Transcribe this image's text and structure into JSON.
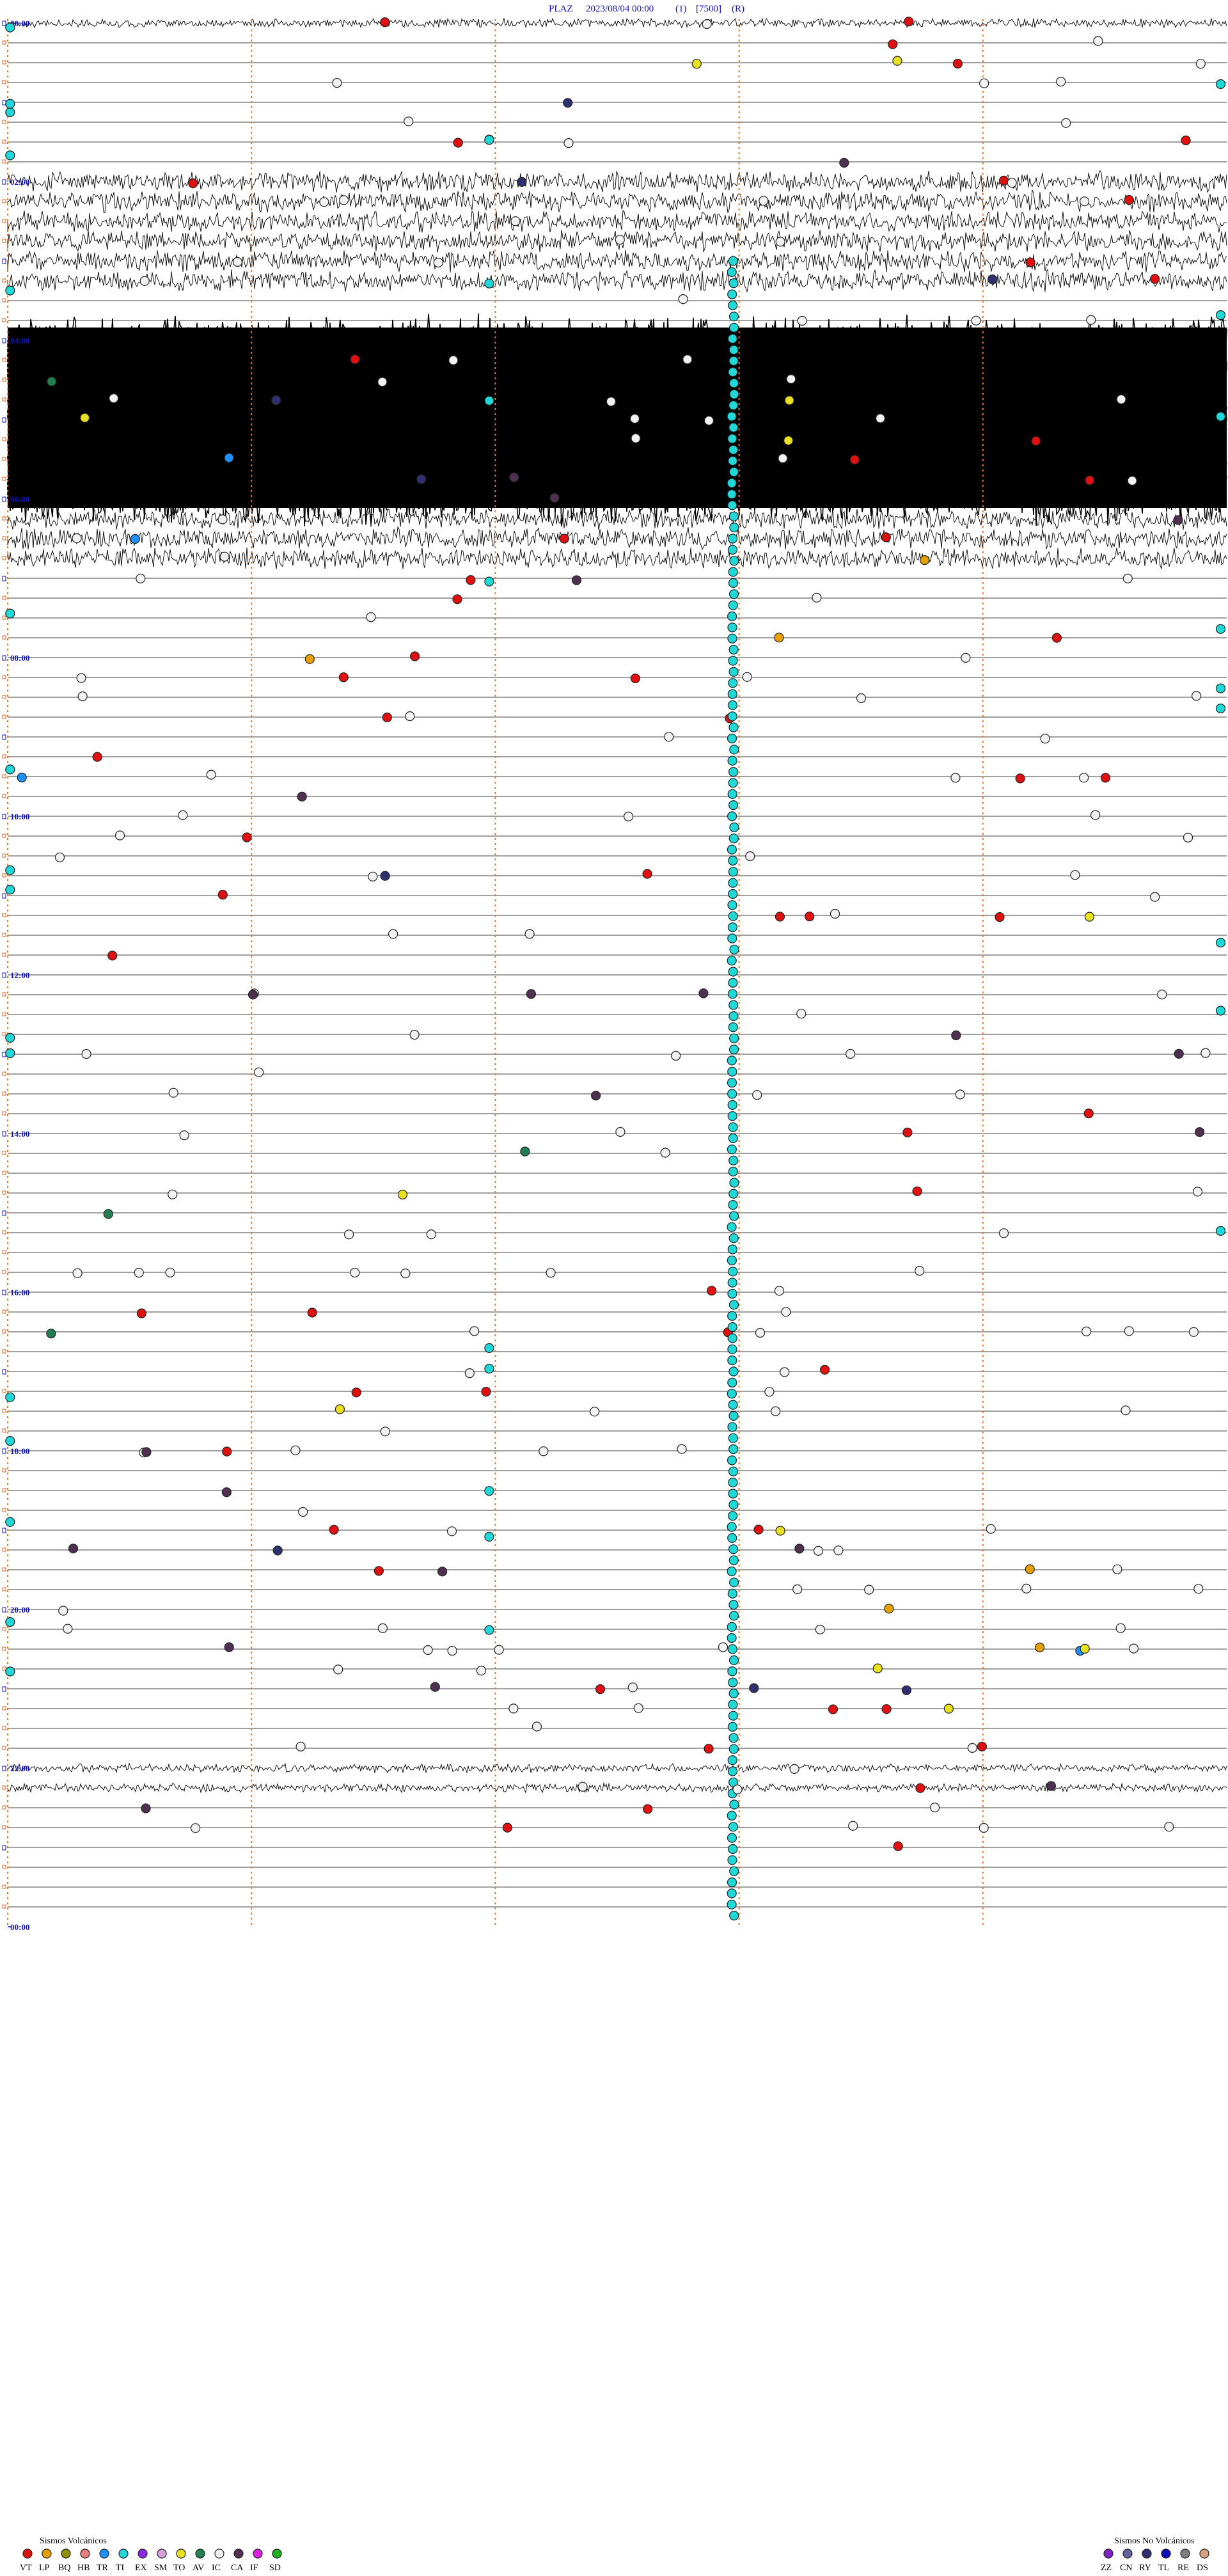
{
  "header": {
    "station": "PLAZ",
    "datetime": "2023/08/04 00:00",
    "field1": "(1)",
    "field2": "[7500]",
    "field3": "(R)"
  },
  "chart_data": {
    "type": "helicorder",
    "station": "PLAZ",
    "date": "2023/08/04",
    "rows_per_hour": 4,
    "minutes_per_row": 15,
    "hour_labels": [
      "00:00",
      "02:00",
      "04:00",
      "06:00",
      "08:00",
      "10:00",
      "12:00",
      "14:00",
      "16:00",
      "18:00",
      "20:00",
      "22:00",
      "00:00"
    ],
    "high_activity_rows": [
      {
        "from_row": 0,
        "to_row": 0,
        "amplitude": "medium"
      },
      {
        "from_row": 8,
        "to_row": 13,
        "amplitude": "high"
      },
      {
        "from_row": 16,
        "to_row": 24,
        "amplitude": "saturated"
      },
      {
        "from_row": 25,
        "to_row": 27,
        "amplitude": "high"
      },
      {
        "from_row": 88,
        "to_row": 89,
        "amplitude": "medium"
      }
    ],
    "trace_drawn_until_row": 96,
    "marker_columns_percent": [
      0,
      20,
      40,
      60,
      80
    ],
    "events_by_class": {
      "VT": 58,
      "LP": 6,
      "BQ": 0,
      "HB": 0,
      "TR": 4,
      "TI": 185,
      "EX": 0,
      "SM": 0,
      "TO": 12,
      "AV": 4,
      "IC": 150,
      "CA": 22,
      "IF": 0,
      "SD": 0,
      "ZZ": 0,
      "CN": 0,
      "RY": 9,
      "TL": 0,
      "RE": 0,
      "DS": 0
    }
  },
  "legend": {
    "volcanic_title": "Sismos Volcánicos",
    "nonvolcanic_title": "Sismos No Volcánicos",
    "volcanic": [
      {
        "code": "VT",
        "color": "#e01010"
      },
      {
        "code": "LP",
        "color": "#e8a000"
      },
      {
        "code": "BQ",
        "color": "#909000"
      },
      {
        "code": "HB",
        "color": "#e88080"
      },
      {
        "code": "TR",
        "color": "#1e90ff"
      },
      {
        "code": "TI",
        "color": "#20d8d8"
      },
      {
        "code": "EX",
        "color": "#8a2be2"
      },
      {
        "code": "SM",
        "color": "#d8a0d8"
      },
      {
        "code": "TO",
        "color": "#e8e020"
      },
      {
        "code": "AV",
        "color": "#208050"
      },
      {
        "code": "IC",
        "color": "#f2f2f2"
      },
      {
        "code": "CA",
        "color": "#503050"
      },
      {
        "code": "IF",
        "color": "#e020e0"
      },
      {
        "code": "SD",
        "color": "#20b020"
      }
    ],
    "nonvolcanic": [
      {
        "code": "ZZ",
        "color": "#8020c0"
      },
      {
        "code": "CN",
        "color": "#6060a0"
      },
      {
        "code": "RY",
        "color": "#303070"
      },
      {
        "code": "TL",
        "color": "#1010c0"
      },
      {
        "code": "RE",
        "color": "#808080"
      },
      {
        "code": "DS",
        "color": "#d8a080"
      }
    ]
  }
}
